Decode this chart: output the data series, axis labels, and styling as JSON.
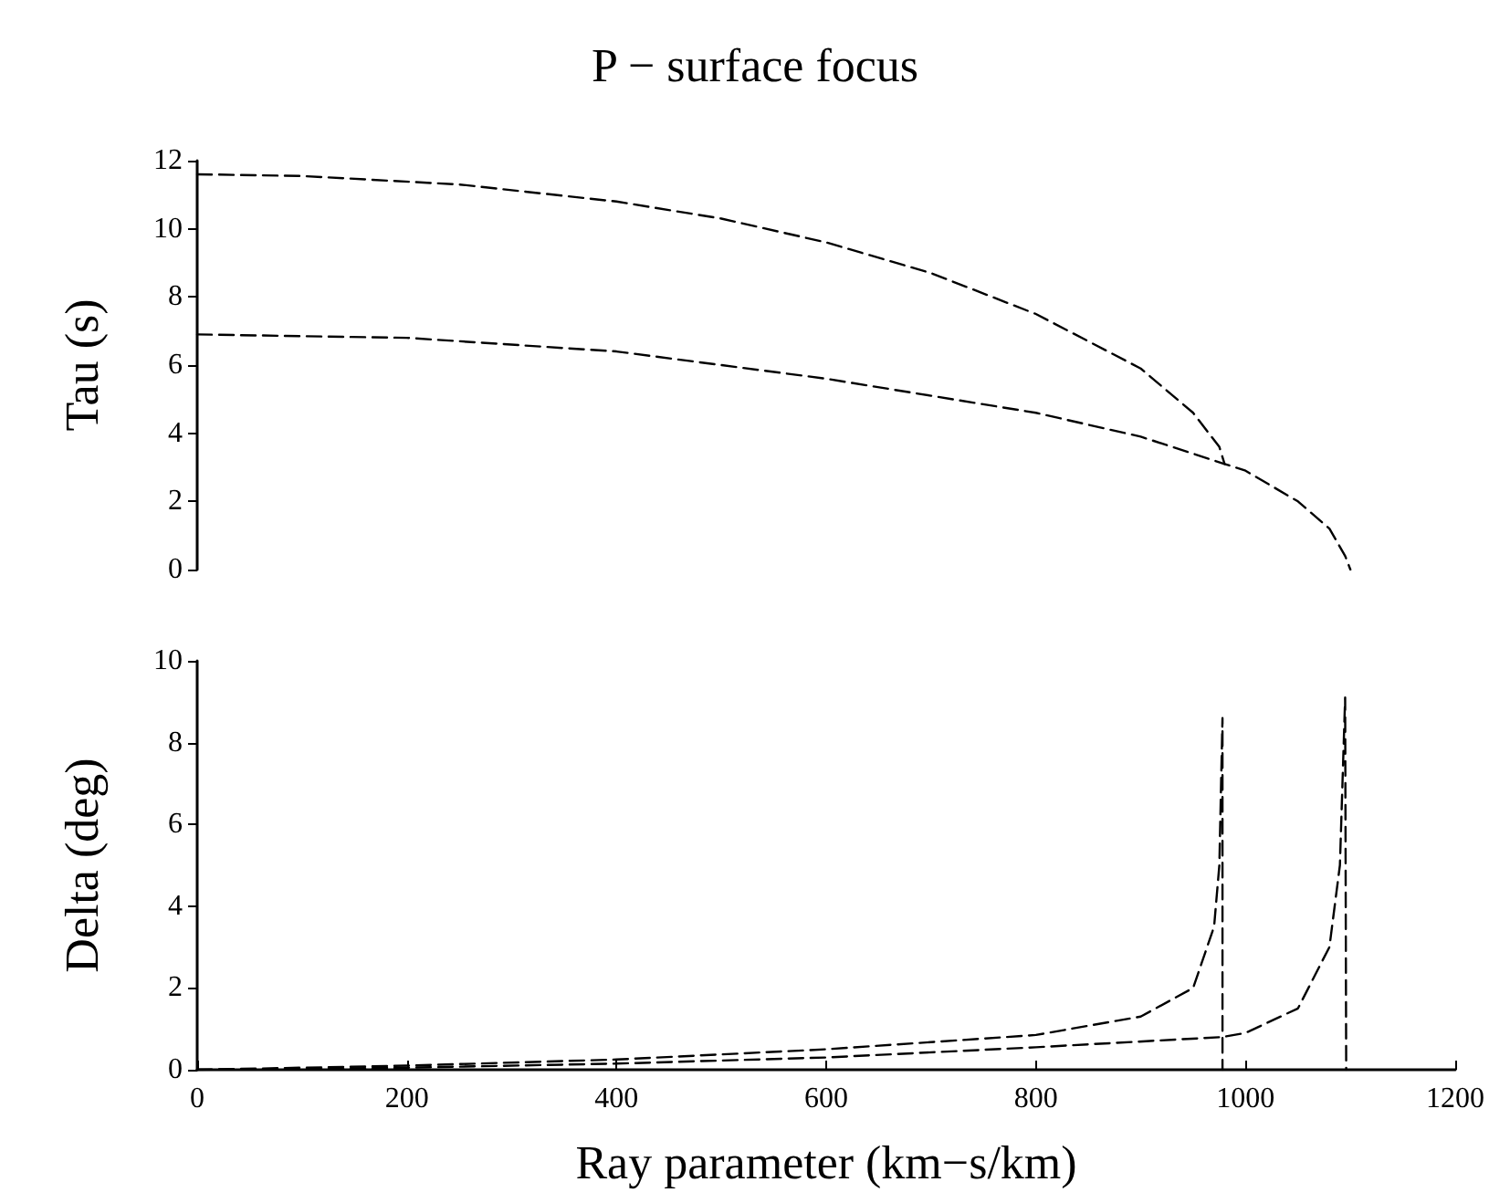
{
  "chart_data": [
    {
      "type": "line",
      "title": "P − surface focus",
      "ylabel": "Tau (s)",
      "xlim": [
        0,
        1200
      ],
      "xticks": [
        0,
        200,
        400,
        600,
        800,
        1000,
        1200
      ],
      "ylim": [
        0,
        12
      ],
      "yticks": [
        0,
        2,
        4,
        6,
        8,
        10,
        12
      ],
      "tick_labels": "y",
      "grid": false,
      "marker": "none",
      "line_style": "dashed",
      "series": [
        {
          "color": "#000000",
          "x": [
            0,
            100,
            250,
            400,
            500,
            600,
            700,
            800,
            900,
            950,
            975,
            980
          ],
          "values": [
            11.6,
            11.55,
            11.3,
            10.8,
            10.3,
            9.6,
            8.7,
            7.5,
            5.9,
            4.6,
            3.6,
            3.1
          ]
        },
        {
          "color": "#000000",
          "x": [
            0,
            200,
            400,
            600,
            800,
            900,
            980,
            1000,
            1050,
            1080,
            1095,
            1100
          ],
          "values": [
            6.9,
            6.8,
            6.4,
            5.6,
            4.6,
            3.9,
            3.1,
            2.9,
            2.0,
            1.2,
            0.4,
            0
          ]
        }
      ]
    },
    {
      "type": "line",
      "ylabel": "Delta (deg)",
      "xlabel": "Ray parameter (km−s/km)",
      "xlim": [
        0,
        1200
      ],
      "xticks": [
        0,
        200,
        400,
        600,
        800,
        1000,
        1200
      ],
      "ylim": [
        0,
        10
      ],
      "yticks": [
        0,
        2,
        4,
        6,
        8,
        10
      ],
      "grid": false,
      "marker": "none",
      "line_style": "dashed",
      "series": [
        {
          "color": "#000000",
          "x": [
            0,
            200,
            400,
            600,
            800,
            900,
            950,
            970,
            975,
            978,
            978
          ],
          "values": [
            0,
            0.1,
            0.25,
            0.5,
            0.85,
            1.3,
            2.0,
            3.5,
            5.0,
            8.6,
            0
          ]
        },
        {
          "color": "#000000",
          "x": [
            0,
            200,
            400,
            600,
            800,
            978,
            1000,
            1050,
            1080,
            1090,
            1095,
            1096
          ],
          "values": [
            0,
            0.05,
            0.15,
            0.3,
            0.55,
            0.8,
            0.9,
            1.5,
            3.0,
            5.0,
            9.1,
            0
          ]
        }
      ]
    }
  ]
}
